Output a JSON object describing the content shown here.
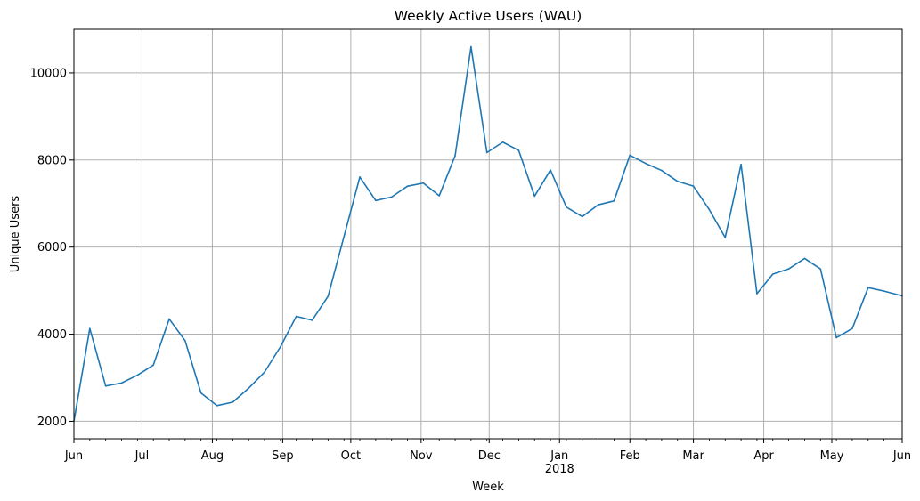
{
  "chart_data": {
    "type": "line",
    "title": "Weekly Active Users (WAU)",
    "xlabel": "Week",
    "ylabel": "Unique Users",
    "grid": true,
    "xlim": [
      "2017-06-01",
      "2018-06-01"
    ],
    "ylim": [
      1600,
      11000
    ],
    "x_tick_labels": [
      {
        "date": "2017-06-01",
        "label": "Jun"
      },
      {
        "date": "2017-07-01",
        "label": "Jul"
      },
      {
        "date": "2017-08-01",
        "label": "Aug"
      },
      {
        "date": "2017-09-01",
        "label": "Sep"
      },
      {
        "date": "2017-10-01",
        "label": "Oct"
      },
      {
        "date": "2017-11-01",
        "label": "Nov"
      },
      {
        "date": "2017-12-01",
        "label": "Dec"
      },
      {
        "date": "2018-01-01",
        "label": "Jan"
      },
      {
        "date": "2018-02-01",
        "label": "Feb"
      },
      {
        "date": "2018-03-01",
        "label": "Mar"
      },
      {
        "date": "2018-04-01",
        "label": "Apr"
      },
      {
        "date": "2018-05-01",
        "label": "May"
      },
      {
        "date": "2018-06-01",
        "label": "Jun"
      }
    ],
    "year_label": {
      "date": "2018-01-01",
      "label": "2018"
    },
    "y_ticks": [
      2000,
      4000,
      6000,
      8000,
      10000
    ],
    "series": [
      {
        "color": "#1f77b4",
        "points": [
          [
            "2017-06-01",
            2000
          ],
          [
            "2017-06-08",
            4130
          ],
          [
            "2017-06-15",
            2810
          ],
          [
            "2017-06-22",
            2880
          ],
          [
            "2017-06-29",
            3060
          ],
          [
            "2017-07-06",
            3290
          ],
          [
            "2017-07-13",
            4350
          ],
          [
            "2017-07-20",
            3850
          ],
          [
            "2017-07-27",
            2650
          ],
          [
            "2017-08-03",
            2360
          ],
          [
            "2017-08-10",
            2440
          ],
          [
            "2017-08-17",
            2760
          ],
          [
            "2017-08-24",
            3130
          ],
          [
            "2017-08-31",
            3710
          ],
          [
            "2017-09-07",
            4410
          ],
          [
            "2017-09-14",
            4320
          ],
          [
            "2017-09-21",
            4870
          ],
          [
            "2017-09-28",
            6240
          ],
          [
            "2017-10-05",
            7610
          ],
          [
            "2017-10-12",
            7070
          ],
          [
            "2017-10-19",
            7150
          ],
          [
            "2017-10-26",
            7400
          ],
          [
            "2017-11-02",
            7470
          ],
          [
            "2017-11-09",
            7180
          ],
          [
            "2017-11-16",
            8100
          ],
          [
            "2017-11-23",
            10600
          ],
          [
            "2017-11-30",
            8170
          ],
          [
            "2017-12-07",
            8410
          ],
          [
            "2017-12-14",
            8220
          ],
          [
            "2017-12-21",
            7170
          ],
          [
            "2017-12-28",
            7770
          ],
          [
            "2018-01-04",
            6920
          ],
          [
            "2018-01-11",
            6700
          ],
          [
            "2018-01-18",
            6970
          ],
          [
            "2018-01-25",
            7060
          ],
          [
            "2018-02-01",
            8110
          ],
          [
            "2018-02-08",
            7920
          ],
          [
            "2018-02-15",
            7760
          ],
          [
            "2018-02-22",
            7510
          ],
          [
            "2018-03-01",
            7400
          ],
          [
            "2018-03-08",
            6860
          ],
          [
            "2018-03-15",
            6220
          ],
          [
            "2018-03-22",
            7900
          ],
          [
            "2018-03-29",
            4930
          ],
          [
            "2018-04-05",
            5380
          ],
          [
            "2018-04-12",
            5500
          ],
          [
            "2018-04-19",
            5740
          ],
          [
            "2018-04-26",
            5500
          ],
          [
            "2018-05-03",
            3920
          ],
          [
            "2018-05-10",
            4130
          ],
          [
            "2018-05-17",
            5070
          ],
          [
            "2018-05-24",
            4990
          ],
          [
            "2018-06-01",
            4880
          ]
        ]
      }
    ]
  }
}
